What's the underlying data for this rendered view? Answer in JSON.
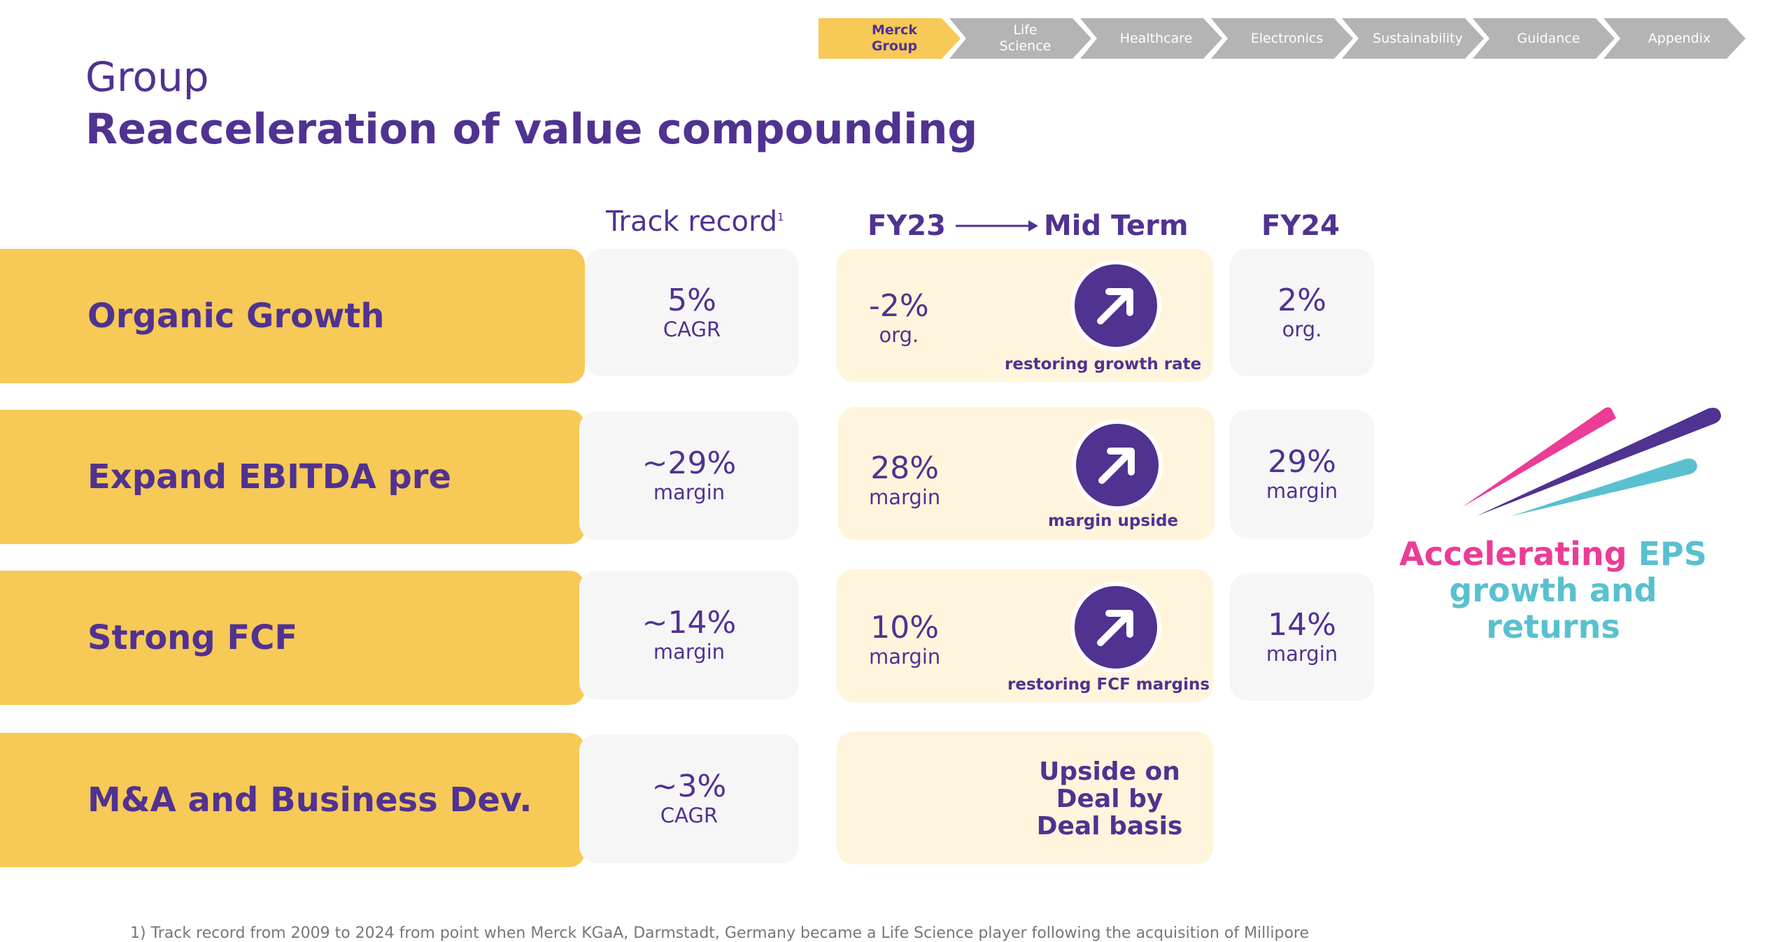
{
  "nav": {
    "items": [
      {
        "label": "Merck Group",
        "active": true
      },
      {
        "label": "Life Science",
        "active": false
      },
      {
        "label": "Healthcare",
        "active": false
      },
      {
        "label": "Electronics",
        "active": false
      },
      {
        "label": "Sustainability",
        "active": false
      },
      {
        "label": "Guidance",
        "active": false
      },
      {
        "label": "Appendix",
        "active": false
      }
    ]
  },
  "header": {
    "section": "Group",
    "title": "Reacceleration of value compounding"
  },
  "columns": {
    "track_record": "Track record",
    "track_record_note": "1",
    "fy23": "FY23",
    "mid_term": "Mid Term",
    "fy24": "FY24"
  },
  "rows": [
    {
      "label": "Organic Growth",
      "track": {
        "value": "5%",
        "unit": "CAGR"
      },
      "fy23": {
        "value": "-2%",
        "unit": "org."
      },
      "mid_term": "restoring growth rate",
      "fy24": {
        "value": "2%",
        "unit": "org."
      }
    },
    {
      "label": "Expand EBITDA pre",
      "track": {
        "value": "~29%",
        "unit": "margin"
      },
      "fy23": {
        "value": "28%",
        "unit": "margin"
      },
      "mid_term": "margin upside",
      "fy24": {
        "value": "29%",
        "unit": "margin"
      }
    },
    {
      "label": "Strong FCF",
      "track": {
        "value": "~14%",
        "unit": "margin"
      },
      "fy23": {
        "value": "10%",
        "unit": "margin"
      },
      "mid_term": "restoring FCF margins",
      "fy24": {
        "value": "14%",
        "unit": "margin"
      }
    },
    {
      "label": "M&A and Business Dev.",
      "track": {
        "value": "~3%",
        "unit": "CAGR"
      },
      "deal_text": "Upside on Deal by Deal basis"
    }
  ],
  "eps": {
    "part1": "Accelerating",
    "part2": "EPS growth and returns"
  },
  "colors": {
    "purple": "#503291",
    "yellow": "#f7c956",
    "pink": "#eb3c96",
    "teal": "#5ac0cf",
    "cream": "#fef5dc",
    "grey": "#f6f6f6"
  },
  "footnote": "1) Track record from 2009 to 2024 from point when Merck KGaA, Darmstadt, Germany became a Life Science player following the acquisition of Millipore"
}
